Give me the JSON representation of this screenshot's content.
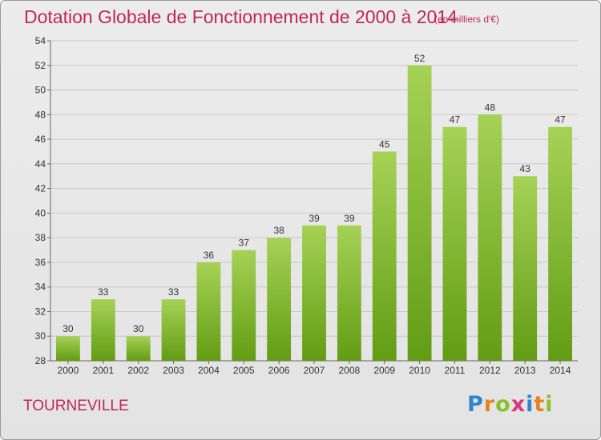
{
  "header": {
    "title": "Dotation Globale de Fonctionnement de 2000 à 2014",
    "subtitle": "(en milliers d'€)"
  },
  "footer": {
    "commune": "TOURNEVILLE",
    "logo": "Proxiti",
    "logo_letters": [
      {
        "ch": "P",
        "color": "#2f86c8"
      },
      {
        "ch": "r",
        "color": "#e8821e"
      },
      {
        "ch": "o",
        "color": "#8cbf2b"
      },
      {
        "ch": "x",
        "color": "#d63a7a"
      },
      {
        "ch": "i",
        "color": "#2f86c8"
      },
      {
        "ch": "t",
        "color": "#e8821e"
      },
      {
        "ch": "i",
        "color": "#8cbf2b"
      }
    ]
  },
  "colors": {
    "title": "#c0265a",
    "bar_light": "#a6d256",
    "bar_dark": "#629c14",
    "grid": "#c8c8c8"
  },
  "chart_data": {
    "type": "bar",
    "categories": [
      "2000",
      "2001",
      "2002",
      "2003",
      "2004",
      "2005",
      "2006",
      "2007",
      "2008",
      "2009",
      "2010",
      "2011",
      "2012",
      "2013",
      "2014"
    ],
    "values": [
      30,
      33,
      30,
      33,
      36,
      37,
      38,
      39,
      39,
      45,
      52,
      47,
      48,
      43,
      47
    ],
    "ylim": [
      28,
      54
    ],
    "yticks": [
      28,
      30,
      32,
      34,
      36,
      38,
      40,
      42,
      44,
      46,
      48,
      50,
      52,
      54
    ],
    "grid": true,
    "legend": "none"
  }
}
